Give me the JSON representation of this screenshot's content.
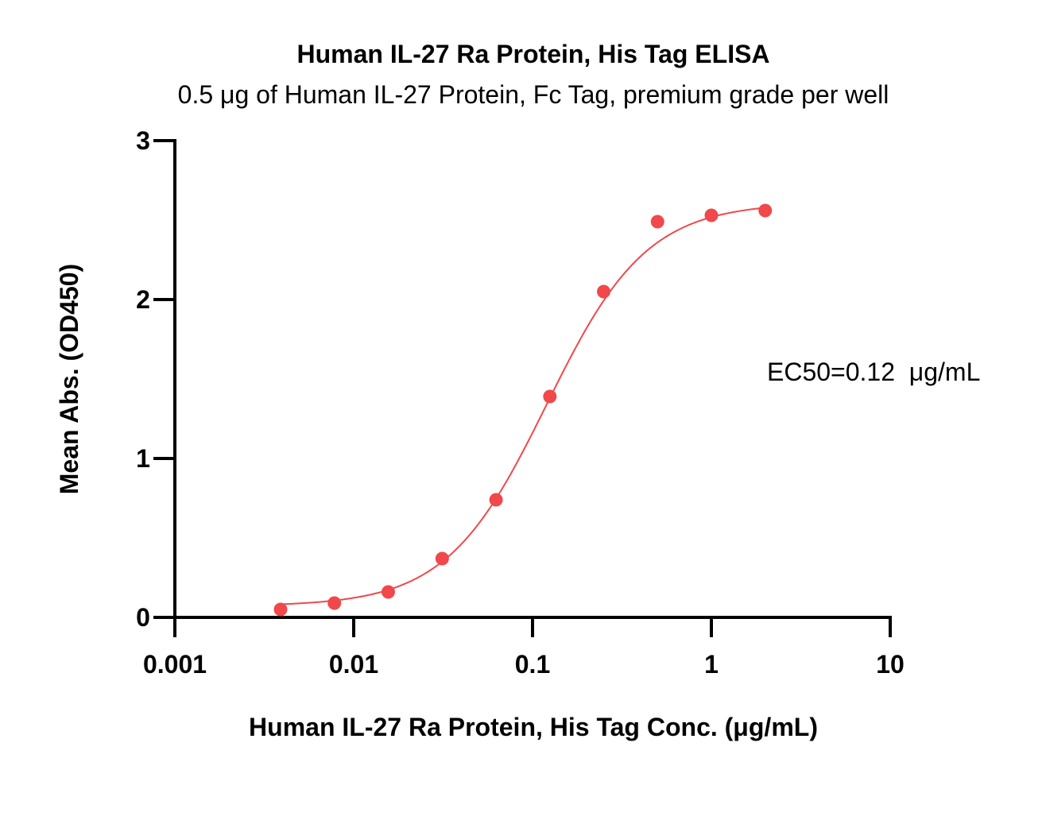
{
  "chart_data": {
    "type": "scatter",
    "title": "Human IL-27 Ra Protein, His Tag ELISA",
    "subtitle": "0.5 μg of Human IL-27 Protein, Fc Tag, premium grade per well",
    "xlabel": "Human IL-27 Ra Protein, His Tag Conc. (μg/mL)",
    "ylabel": "Mean Abs. (OD450)",
    "x_scale": "log",
    "xlim": [
      0.001,
      10
    ],
    "ylim": [
      0,
      3
    ],
    "x_ticks": [
      0.001,
      0.01,
      0.1,
      1,
      10
    ],
    "x_tick_labels": [
      "0.001",
      "0.01",
      "0.1",
      "1",
      "10"
    ],
    "y_ticks": [
      0,
      1,
      2,
      3
    ],
    "y_tick_labels": [
      "0",
      "1",
      "2",
      "3"
    ],
    "grid": false,
    "series": [
      {
        "color": "#f0484b",
        "x": [
          0.0039,
          0.0078,
          0.0156,
          0.03125,
          0.0625,
          0.125,
          0.25,
          0.5,
          1,
          2
        ],
        "y": [
          0.05,
          0.09,
          0.16,
          0.37,
          0.74,
          1.39,
          2.05,
          2.49,
          2.53,
          2.56
        ]
      }
    ],
    "fit_curve": {
      "type": "4PL",
      "bottom": 0.07,
      "top": 2.61,
      "ec50": 0.12,
      "hill": 1.55,
      "color": "#f0484b"
    },
    "annotations": [
      {
        "text": "EC50=0.12  μg/mL",
        "position": "right"
      }
    ]
  }
}
